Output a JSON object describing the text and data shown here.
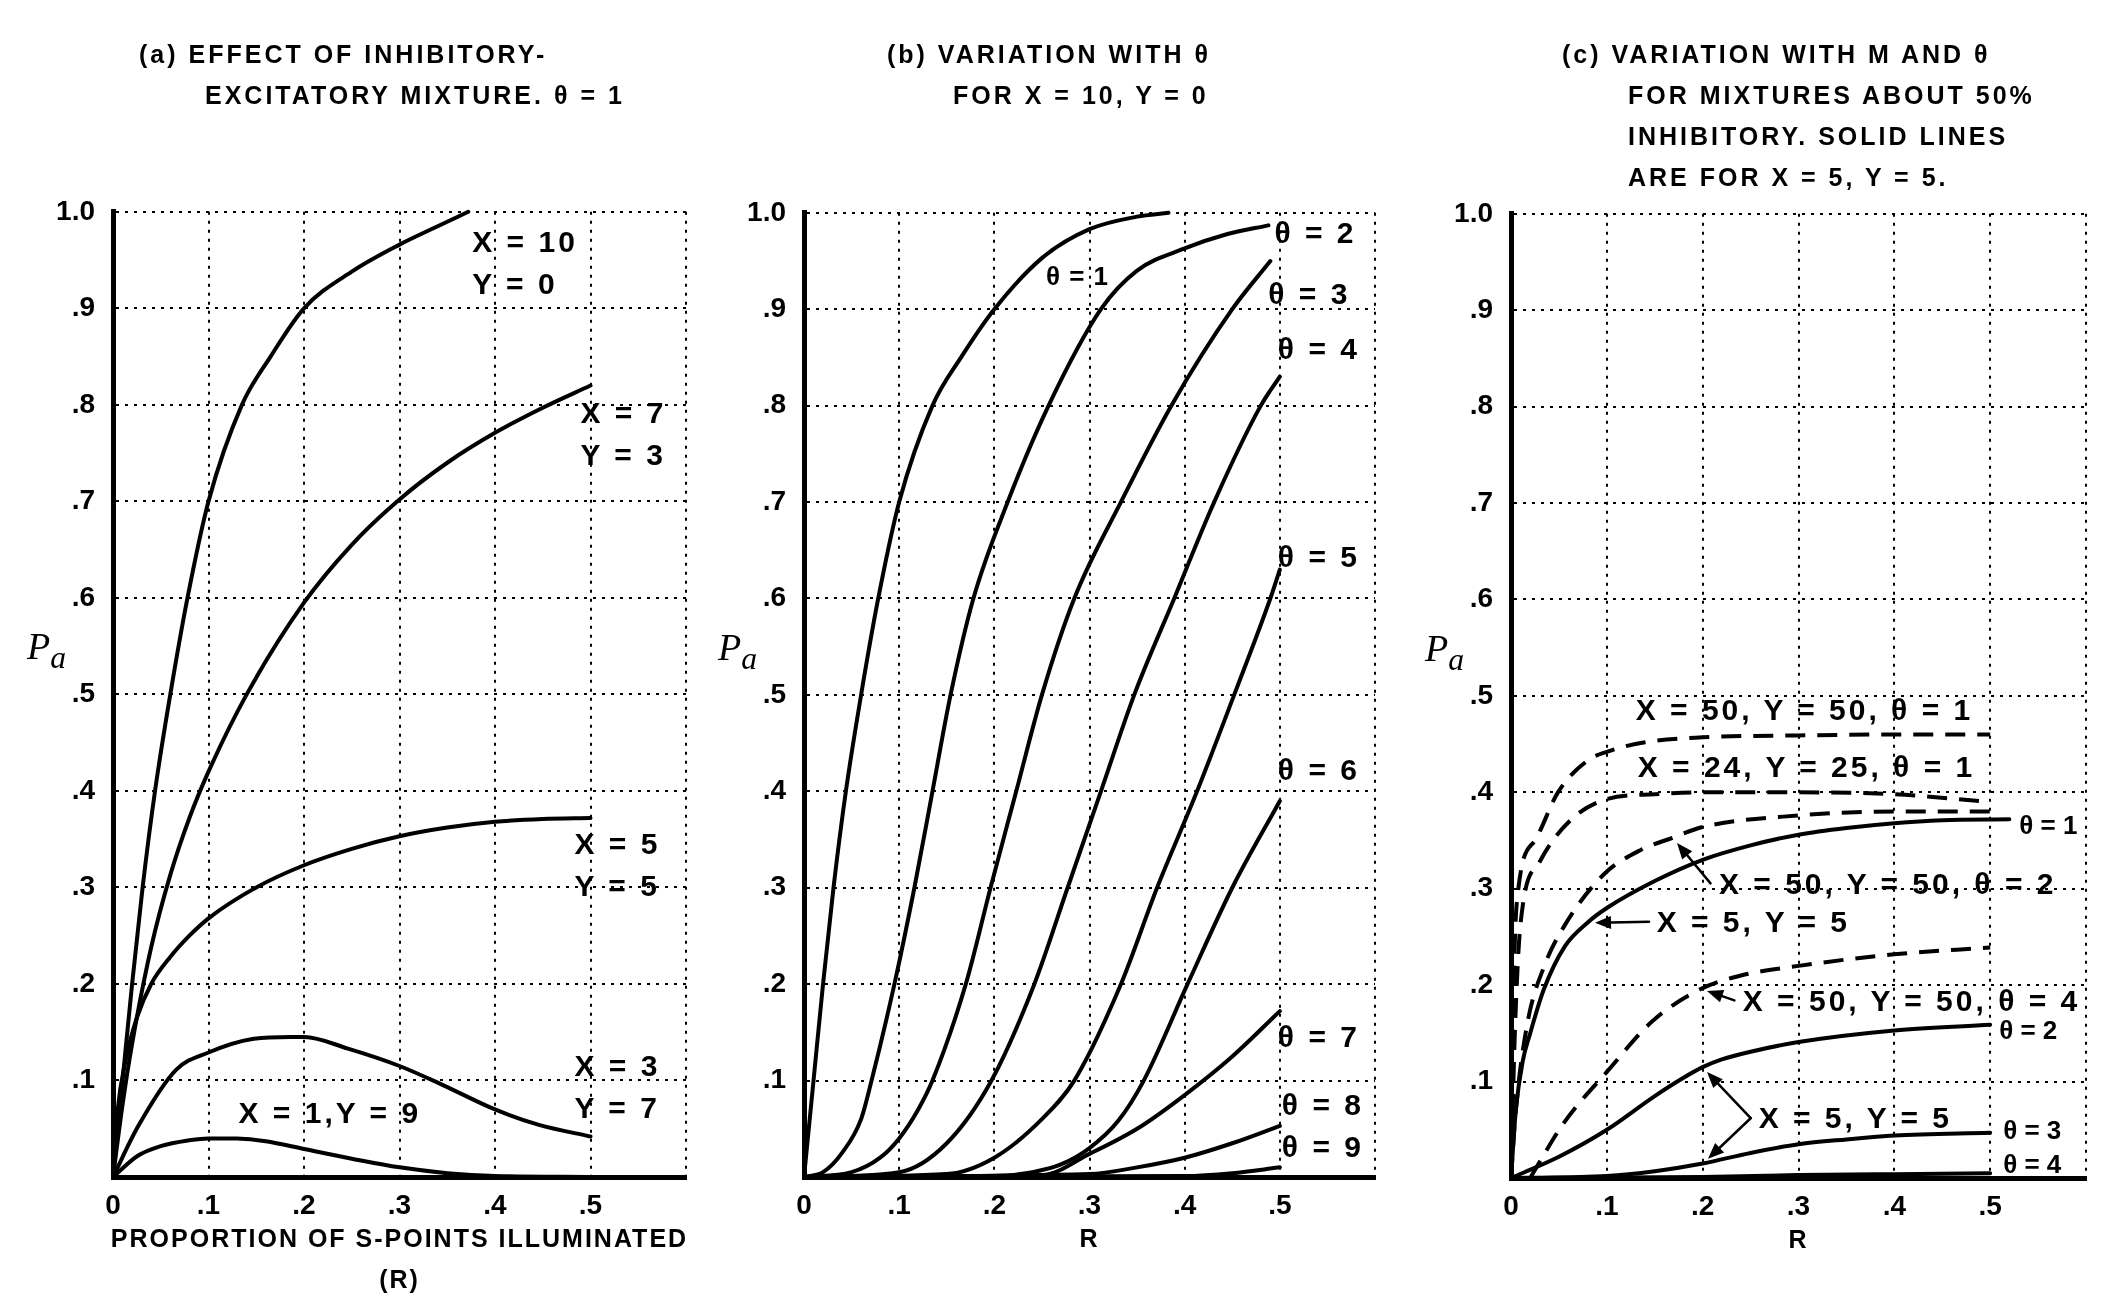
{
  "chart_data": [
    {
      "type": "line",
      "title": "(a) EFFECT OF INHIBITORY-\nEXCITATORY MIXTURE. θ = 1",
      "xlabel": "PROPORTION OF S-POINTS ILLUMINATED\n(R)",
      "ylabel": "P$_{a}$",
      "xlim": [
        0,
        0.6
      ],
      "xticks": [
        {
          "value": 0,
          "label": "0"
        },
        {
          "value": 0.1,
          "label": ".1"
        },
        {
          "value": 0.2,
          "label": ".2"
        },
        {
          "value": 0.3,
          "label": ".3"
        },
        {
          "value": 0.4,
          "label": ".4"
        },
        {
          "value": 0.5,
          "label": ".5"
        },
        {
          "value": 0.6,
          "label": null
        }
      ],
      "ylim": [
        0,
        1
      ],
      "yticks": [
        {
          "value": 0,
          "label": null
        },
        {
          "value": 0.1,
          "label": ".1"
        },
        {
          "value": 0.2,
          "label": ".2"
        },
        {
          "value": 0.3,
          "label": ".3"
        },
        {
          "value": 0.4,
          "label": ".4"
        },
        {
          "value": 0.5,
          "label": ".5"
        },
        {
          "value": 0.6,
          "label": ".6"
        },
        {
          "value": 0.7,
          "label": ".7"
        },
        {
          "value": 0.8,
          "label": ".8"
        },
        {
          "value": 0.9,
          "label": ".9"
        },
        {
          "value": 1,
          "label": "1.0"
        }
      ],
      "grid": true,
      "marker": "none",
      "line_style": "solid",
      "series": [
        {
          "name": "X = 10\nY = 0",
          "color": "#000000",
          "x": [
            0,
            0.01,
            0.02,
            0.031,
            0.044,
            0.06,
            0.078,
            0.1,
            0.135,
            0.165,
            0.2,
            0.25,
            0.3,
            0.34,
            0.372
          ],
          "values": [
            0,
            0.1,
            0.2,
            0.3,
            0.4,
            0.5,
            0.6,
            0.7,
            0.8,
            0.85,
            0.9,
            0.938,
            0.966,
            0.985,
            1
          ]
        },
        {
          "name": "X = 7\nY = 3",
          "color": "#000000",
          "x": [
            0,
            0.01,
            0.02,
            0.04,
            0.06,
            0.08,
            0.1,
            0.14,
            0.2,
            0.25,
            0.3,
            0.35,
            0.4,
            0.45,
            0.5
          ],
          "values": [
            0,
            0.075,
            0.138,
            0.238,
            0.313,
            0.372,
            0.42,
            0.5,
            0.595,
            0.655,
            0.702,
            0.74,
            0.771,
            0.797,
            0.82
          ]
        },
        {
          "name": "X = 5\nY = 5",
          "color": "#000000",
          "x": [
            0,
            0.005,
            0.013,
            0.025,
            0.04,
            0.06,
            0.08,
            0.1,
            0.15,
            0.2,
            0.25,
            0.3,
            0.35,
            0.4,
            0.45,
            0.5
          ],
          "values": [
            0,
            0.07,
            0.12,
            0.165,
            0.2,
            0.228,
            0.25,
            0.268,
            0.3,
            0.323,
            0.34,
            0.353,
            0.362,
            0.368,
            0.371,
            0.372
          ]
        },
        {
          "name": "X = 3\nY = 7",
          "color": "#000000",
          "x": [
            0,
            0.026,
            0.066,
            0.1,
            0.146,
            0.186,
            0.2,
            0.246,
            0.3,
            0.346,
            0.4,
            0.446,
            0.5
          ],
          "values": [
            0,
            0.052,
            0.111,
            0.129,
            0.143,
            0.145,
            0.145,
            0.133,
            0.115,
            0.095,
            0.07,
            0.054,
            0.042
          ]
        },
        {
          "name": "X = 1,Y = 9",
          "color": "#000000",
          "x": [
            0,
            0.026,
            0.05,
            0.08,
            0.1,
            0.13,
            0.16,
            0.2,
            0.25,
            0.3,
            0.35,
            0.4,
            0.5
          ],
          "values": [
            0,
            0.022,
            0.032,
            0.038,
            0.04,
            0.04,
            0.037,
            0.029,
            0.019,
            0.01,
            0.004,
            0.001,
            0
          ]
        }
      ]
    },
    {
      "type": "line",
      "title": "(b) VARIATION WITH θ\nFOR X = 10, Y = 0",
      "xlabel": "R",
      "ylabel": "P$_{a}$",
      "xlim": [
        0,
        0.6
      ],
      "xticks": [
        {
          "value": 0,
          "label": "0"
        },
        {
          "value": 0.1,
          "label": ".1"
        },
        {
          "value": 0.2,
          "label": ".2"
        },
        {
          "value": 0.3,
          "label": ".3"
        },
        {
          "value": 0.4,
          "label": ".4"
        },
        {
          "value": 0.5,
          "label": ".5"
        },
        {
          "value": 0.6,
          "label": null
        }
      ],
      "ylim": [
        0,
        1
      ],
      "yticks": [
        {
          "value": 0,
          "label": null
        },
        {
          "value": 0.1,
          "label": ".1"
        },
        {
          "value": 0.2,
          "label": ".2"
        },
        {
          "value": 0.3,
          "label": ".3"
        },
        {
          "value": 0.4,
          "label": ".4"
        },
        {
          "value": 0.5,
          "label": ".5"
        },
        {
          "value": 0.6,
          "label": ".6"
        },
        {
          "value": 0.7,
          "label": ".7"
        },
        {
          "value": 0.8,
          "label": ".8"
        },
        {
          "value": 0.9,
          "label": ".9"
        },
        {
          "value": 1,
          "label": "1.0"
        }
      ],
      "grid": true,
      "marker": "none",
      "line_style": "solid",
      "series": [
        {
          "name": "θ = 1",
          "color": "#000000",
          "x": [
            0,
            0.01,
            0.02,
            0.031,
            0.044,
            0.06,
            0.078,
            0.1,
            0.135,
            0.165,
            0.2,
            0.25,
            0.3,
            0.35,
            0.383
          ],
          "values": [
            0,
            0.1,
            0.2,
            0.3,
            0.4,
            0.5,
            0.6,
            0.7,
            0.8,
            0.85,
            0.9,
            0.953,
            0.983,
            0.996,
            1
          ]
        },
        {
          "name": "θ = 2",
          "color": "#000000",
          "x": [
            0,
            0.02,
            0.04,
            0.06,
            0.071,
            0.095,
            0.116,
            0.135,
            0.154,
            0.178,
            0.214,
            0.257,
            0.312,
            0.35,
            0.4,
            0.445,
            0.488
          ],
          "values": [
            0,
            0.005,
            0.025,
            0.06,
            0.1,
            0.2,
            0.3,
            0.4,
            0.5,
            0.6,
            0.7,
            0.8,
            0.9,
            0.94,
            0.963,
            0.978,
            0.987
          ]
        },
        {
          "name": "θ = 3",
          "color": "#000000",
          "x": [
            0,
            0.05,
            0.08,
            0.1,
            0.12,
            0.135,
            0.17,
            0.196,
            0.223,
            0.25,
            0.284,
            0.333,
            0.386,
            0.45,
            0.49
          ],
          "values": [
            0,
            0.005,
            0.02,
            0.04,
            0.07,
            0.1,
            0.2,
            0.3,
            0.4,
            0.5,
            0.6,
            0.7,
            0.8,
            0.9,
            0.95
          ]
        },
        {
          "name": "θ = 4",
          "color": "#000000",
          "x": [
            0,
            0.1,
            0.15,
            0.197,
            0.242,
            0.277,
            0.312,
            0.347,
            0.389,
            0.431,
            0.48,
            0.5
          ],
          "values": [
            0,
            0.005,
            0.035,
            0.1,
            0.2,
            0.3,
            0.4,
            0.5,
            0.6,
            0.7,
            0.8,
            0.83
          ]
        },
        {
          "name": "θ = 5",
          "color": "#000000",
          "x": [
            0,
            0.15,
            0.2,
            0.25,
            0.284,
            0.333,
            0.371,
            0.413,
            0.452,
            0.49,
            0.5
          ],
          "values": [
            0,
            0.003,
            0.02,
            0.06,
            0.1,
            0.2,
            0.3,
            0.4,
            0.5,
            0.6,
            0.63
          ]
        },
        {
          "name": "θ = 6",
          "color": "#000000",
          "x": [
            0,
            0.2,
            0.24,
            0.27,
            0.3,
            0.33,
            0.357,
            0.403,
            0.45,
            0.5
          ],
          "values": [
            0,
            0.001,
            0.005,
            0.013,
            0.03,
            0.058,
            0.1,
            0.2,
            0.3,
            0.39
          ]
        },
        {
          "name": "θ = 7",
          "color": "#000000",
          "x": [
            0,
            0.25,
            0.3,
            0.35,
            0.4,
            0.45,
            0.5
          ],
          "values": [
            0,
            0.002,
            0.024,
            0.05,
            0.085,
            0.125,
            0.172
          ]
        },
        {
          "name": "θ = 8",
          "color": "#000000",
          "x": [
            0,
            0.3,
            0.35,
            0.4,
            0.45,
            0.5
          ],
          "values": [
            0,
            0.003,
            0.01,
            0.02,
            0.035,
            0.053
          ]
        },
        {
          "name": "θ = 9",
          "color": "#000000",
          "x": [
            0,
            0.4,
            0.45,
            0.5
          ],
          "values": [
            0,
            0.001,
            0.004,
            0.01
          ]
        }
      ]
    },
    {
      "type": "line",
      "title": "(c) VARIATION WITH M AND θ\nFOR MIXTURES ABOUT 50%\nINHIBITORY. SOLID LINES\nARE FOR X = 5, Y = 5.",
      "xlabel": "R",
      "ylabel": "P$_{a}$",
      "xlim": [
        0,
        0.6
      ],
      "xticks": [
        {
          "value": 0,
          "label": "0"
        },
        {
          "value": 0.1,
          "label": ".1"
        },
        {
          "value": 0.2,
          "label": ".2"
        },
        {
          "value": 0.3,
          "label": ".3"
        },
        {
          "value": 0.4,
          "label": ".4"
        },
        {
          "value": 0.5,
          "label": ".5"
        },
        {
          "value": 0.6,
          "label": null
        }
      ],
      "ylim": [
        0,
        1
      ],
      "yticks": [
        {
          "value": 0,
          "label": null
        },
        {
          "value": 0.1,
          "label": ".1"
        },
        {
          "value": 0.2,
          "label": ".2"
        },
        {
          "value": 0.3,
          "label": ".3"
        },
        {
          "value": 0.4,
          "label": ".4"
        },
        {
          "value": 0.5,
          "label": ".5"
        },
        {
          "value": 0.6,
          "label": ".6"
        },
        {
          "value": 0.7,
          "label": ".7"
        },
        {
          "value": 0.8,
          "label": ".8"
        },
        {
          "value": 0.9,
          "label": ".9"
        },
        {
          "value": 1,
          "label": "1.0"
        }
      ],
      "grid": true,
      "marker": "none",
      "line_style": "solid",
      "series": [
        {
          "name": "X = 50, Y = 50, θ = 1",
          "color": "#000000",
          "line_style": "dashed",
          "x": [
            0,
            0.002,
            0.006,
            0.025,
            0.049,
            0.08,
            0.1,
            0.14,
            0.2,
            0.3,
            0.4,
            0.5
          ],
          "values": [
            0,
            0.16,
            0.285,
            0.35,
            0.4,
            0.433,
            0.442,
            0.452,
            0.457,
            0.459,
            0.46,
            0.46
          ]
        },
        {
          "name": "X = 24, Y = 25, θ = 1",
          "color": "#000000",
          "line_style": "dashed",
          "x": [
            0,
            0.004,
            0.01,
            0.03,
            0.061,
            0.1,
            0.15,
            0.2,
            0.3,
            0.4,
            0.5
          ],
          "values": [
            0,
            0.15,
            0.264,
            0.328,
            0.37,
            0.393,
            0.398,
            0.4,
            0.4,
            0.398,
            0.39
          ]
        },
        {
          "color": "#000000",
          "line_style": "dashed",
          "x": [
            0,
            0.005,
            0.017,
            0.034,
            0.056,
            0.097,
            0.135,
            0.169,
            0.2,
            0.3,
            0.4,
            0.5
          ],
          "values": [
            0,
            0.07,
            0.16,
            0.218,
            0.262,
            0.315,
            0.34,
            0.353,
            0.364,
            0.376,
            0.38,
            0.38
          ]
        },
        {
          "color": "#000000",
          "line_style": "dashed",
          "x": [
            0.02,
            0.055,
            0.1,
            0.148,
            0.198,
            0.24,
            0.3,
            0.4,
            0.5
          ],
          "values": [
            0,
            0.057,
            0.11,
            0.163,
            0.196,
            0.21,
            0.22,
            0.232,
            0.239
          ]
        },
        {
          "name": "θ = 1",
          "color": "#000000",
          "x": [
            0,
            0.005,
            0.012,
            0.02,
            0.034,
            0.056,
            0.08,
            0.1,
            0.15,
            0.2,
            0.25,
            0.3,
            0.35,
            0.4,
            0.45,
            0.52
          ],
          "values": [
            0,
            0.07,
            0.12,
            0.15,
            0.195,
            0.24,
            0.265,
            0.28,
            0.308,
            0.33,
            0.345,
            0.356,
            0.363,
            0.368,
            0.371,
            0.372
          ]
        },
        {
          "name": "θ = 2",
          "color": "#000000",
          "x": [
            0,
            0.05,
            0.1,
            0.15,
            0.18,
            0.2,
            0.22,
            0.25,
            0.3,
            0.4,
            0.5
          ],
          "values": [
            0,
            0.022,
            0.05,
            0.085,
            0.104,
            0.115,
            0.123,
            0.131,
            0.141,
            0.153,
            0.159
          ]
        },
        {
          "name": "θ = 3",
          "color": "#000000",
          "x": [
            0,
            0.1,
            0.15,
            0.2,
            0.25,
            0.3,
            0.35,
            0.4,
            0.5
          ],
          "values": [
            0,
            0.002,
            0.007,
            0.015,
            0.026,
            0.035,
            0.04,
            0.044,
            0.047
          ]
        },
        {
          "name": "θ = 4",
          "color": "#000000",
          "x": [
            0,
            0.2,
            0.3,
            0.4,
            0.5
          ],
          "values": [
            0,
            0.001,
            0.003,
            0.004,
            0.005
          ]
        }
      ],
      "annotations": [
        {
          "text": "X = 50, Y = 50, θ = 2",
          "x": 0.169,
          "y": 0.353
        },
        {
          "text": "X = 5, Y = 5",
          "x": 0.08,
          "y": 0.265
        },
        {
          "text": "X = 50, Y = 50, θ = 4",
          "x": 0.198,
          "y": 0.196
        },
        {
          "text": "X = 5, Y = 5",
          "x": 0.2,
          "y": 0.115
        }
      ]
    }
  ]
}
